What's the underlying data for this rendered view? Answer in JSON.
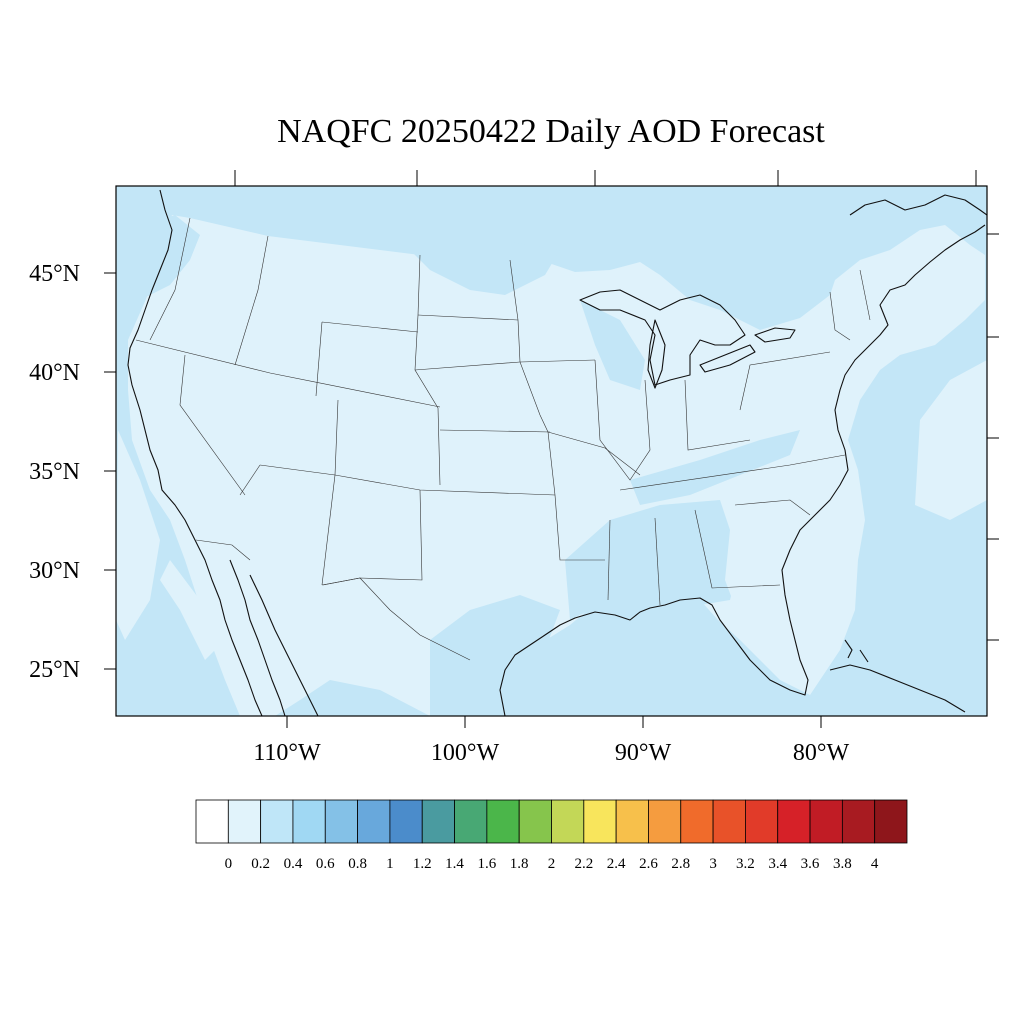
{
  "title": "NAQFC 20250422 Daily AOD Forecast",
  "colors": {
    "background_ocean": "#c3e6f7",
    "land_low": "#dff2fb",
    "aod_0_2_0_4": "#c3e6f7",
    "frame": "#000000"
  },
  "map": {
    "lat_labels": [
      "45°N",
      "40°N",
      "35°N",
      "30°N",
      "25°N"
    ],
    "lon_labels": [
      "110°W",
      "100°W",
      "90°W",
      "80°W"
    ]
  },
  "colorbar": {
    "colors": [
      "#ffffff",
      "#e1f3fb",
      "#bfe6f8",
      "#a0d8f3",
      "#84c1e7",
      "#68a8dc",
      "#4b8ccb",
      "#4a9ba0",
      "#48a874",
      "#4bb64a",
      "#86c54c",
      "#c3d757",
      "#f8e55c",
      "#f7c04b",
      "#f59c3f",
      "#f06b2b",
      "#e85229",
      "#e13b29",
      "#d62128",
      "#c11c25",
      "#a81b21",
      "#8e161b"
    ],
    "labels": [
      "0",
      "0.2",
      "0.4",
      "0.6",
      "0.8",
      "1",
      "1.2",
      "1.4",
      "1.6",
      "1.8",
      "2",
      "2.2",
      "2.4",
      "2.6",
      "2.8",
      "3",
      "3.2",
      "3.4",
      "3.6",
      "3.8",
      "4"
    ]
  }
}
